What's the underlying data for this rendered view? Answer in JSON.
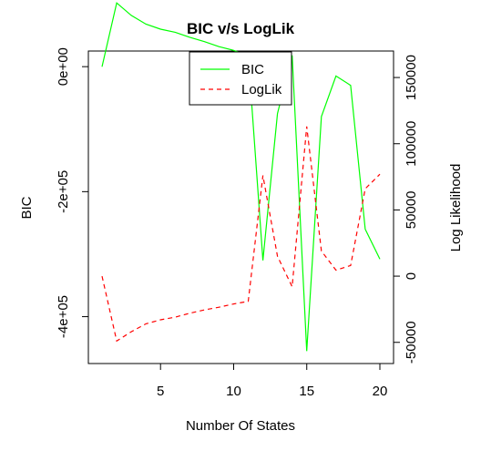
{
  "chart_data": {
    "type": "line",
    "title": "BIC v/s LogLik",
    "xlabel": "Number Of States",
    "ylabel_left": "BIC",
    "ylabel_right": "Log Likelihood",
    "x": [
      1,
      2,
      3,
      4,
      5,
      6,
      7,
      8,
      9,
      10,
      11,
      12,
      13,
      14,
      15,
      16,
      17,
      18,
      19,
      20
    ],
    "xlim": [
      1,
      20
    ],
    "xticks": [
      5,
      10,
      15,
      20
    ],
    "xtick_labels": [
      "5",
      "10",
      "15",
      "20"
    ],
    "y_left_lim": [
      -475000,
      25000
    ],
    "y_left_ticks": [
      0,
      -200000,
      -400000
    ],
    "y_left_tick_labels": [
      "0e+00",
      "-2e+05",
      "-4e+05"
    ],
    "y_right_lim": [
      -66000,
      170000
    ],
    "y_right_ticks": [
      -50000,
      0,
      50000,
      100000,
      150000
    ],
    "y_right_tick_labels": [
      "-50000",
      "0",
      "50000",
      "100000",
      "150000"
    ],
    "series": [
      {
        "name": "BIC",
        "axis": "left",
        "color": "#00ff00",
        "dash": "solid",
        "values": [
          0,
          102000,
          82000,
          68000,
          60000,
          55000,
          47000,
          40000,
          32000,
          26000,
          18000,
          -310000,
          -75000,
          18000,
          -455000,
          -80000,
          -15000,
          -30000,
          -260000,
          -308000
        ]
      },
      {
        "name": "LogLik",
        "axis": "left_scale_right",
        "color": "#ff0000",
        "dash": "dashed",
        "values": [
          0,
          -49000,
          -42000,
          -36000,
          -33000,
          -31000,
          -28000,
          -25500,
          -23500,
          -21000,
          -19000,
          76000,
          15000,
          -8000,
          113000,
          19000,
          4500,
          8000,
          66000,
          77000
        ]
      }
    ],
    "legend": {
      "position": "top-center",
      "entries": [
        "BIC",
        "LogLik"
      ]
    },
    "grid": false
  }
}
